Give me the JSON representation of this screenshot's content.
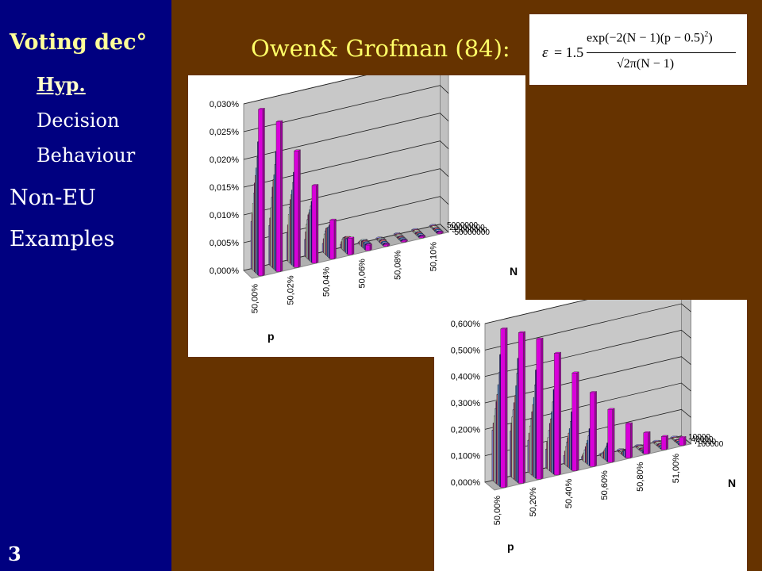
{
  "sidebar": {
    "title": "Voting dec°",
    "sub_items": [
      "Hyp.",
      "Decision",
      "Behaviour"
    ],
    "main_items": [
      "Non-EU",
      "Examples"
    ],
    "slide_number": "3"
  },
  "heading": "Owen& Grofman (84):",
  "formula": {
    "lhs": "ε",
    "eq": "= 1.5",
    "numerator": "exp(−2(N − 1)(p − 0.5)",
    "exponent": "2",
    "numerator_close": ")",
    "denominator": "√2π(N − 1)"
  },
  "colors": {
    "background": "#663300",
    "sidebar": "#000080",
    "heading": "#ffff66",
    "series": [
      "#9999ff",
      "#993366",
      "#ffffcc",
      "#ccffff",
      "#660066",
      "#ff8080",
      "#0066cc",
      "#ccccff",
      "#000080",
      "#ff00ff"
    ]
  },
  "chart_data": [
    {
      "type": "3d-bar",
      "y_ticks": [
        "0,000%",
        "0,005%",
        "0,010%",
        "0,015%",
        "0,020%",
        "0,025%",
        "0,030%"
      ],
      "ylim": [
        0,
        0.03
      ],
      "x_ticks": [
        "50,00%",
        "50,02%",
        "50,04%",
        "50,06%",
        "50,08%",
        "50,10%"
      ],
      "xlabel": "p",
      "depth_ticks": [
        "5000000",
        "20000000",
        "35000000",
        "50000000"
      ],
      "depth_label": "N",
      "series_heights": [
        [
          0.0085,
          0.007,
          0.005,
          0.003,
          0.0015,
          0.0006,
          0.0002,
          0.0001,
          0,
          0,
          0
        ],
        [
          0.01,
          0.0085,
          0.0065,
          0.0045,
          0.0025,
          0.0012,
          0.0005,
          0.0002,
          0,
          0,
          0
        ],
        [
          0.012,
          0.0105,
          0.0085,
          0.006,
          0.0035,
          0.0018,
          0.0008,
          0.0003,
          0.0001,
          0,
          0
        ],
        [
          0.014,
          0.0125,
          0.01,
          0.007,
          0.0042,
          0.0022,
          0.001,
          0.0004,
          0.0001,
          0,
          0
        ],
        [
          0.016,
          0.0145,
          0.0115,
          0.008,
          0.0048,
          0.0024,
          0.001,
          0.0004,
          0.0001,
          0,
          0
        ],
        [
          0.0175,
          0.016,
          0.0125,
          0.0085,
          0.005,
          0.0025,
          0.001,
          0.0004,
          0.0001,
          0,
          0
        ],
        [
          0.019,
          0.017,
          0.0135,
          0.0092,
          0.0052,
          0.0025,
          0.001,
          0.0003,
          0.0001,
          0,
          0
        ],
        [
          0.021,
          0.019,
          0.015,
          0.01,
          0.0055,
          0.0026,
          0.001,
          0.0003,
          0.0001,
          0,
          0
        ],
        [
          0.024,
          0.0215,
          0.017,
          0.011,
          0.006,
          0.0028,
          0.001,
          0.0003,
          0.0001,
          0,
          0
        ],
        [
          0.03,
          0.027,
          0.021,
          0.014,
          0.007,
          0.003,
          0.001,
          0.0003,
          0.0001,
          0,
          0
        ]
      ]
    },
    {
      "type": "3d-bar",
      "y_ticks": [
        "0,000%",
        "0,100%",
        "0,200%",
        "0,300%",
        "0,400%",
        "0,500%",
        "0,600%"
      ],
      "ylim": [
        0,
        0.6
      ],
      "x_ticks": [
        "50,00%",
        "50,20%",
        "50,40%",
        "50,60%",
        "50,80%",
        "51,00%"
      ],
      "xlabel": "p",
      "depth_ticks": [
        "10000",
        "40000",
        "70000",
        "100000"
      ],
      "depth_label": "N",
      "series_heights": [
        [
          0.19,
          0.17,
          0.12,
          0.07,
          0.03,
          0.01,
          0.003,
          0.001,
          0,
          0,
          0
        ],
        [
          0.22,
          0.2,
          0.15,
          0.1,
          0.05,
          0.02,
          0.006,
          0.002,
          0,
          0,
          0
        ],
        [
          0.25,
          0.23,
          0.18,
          0.12,
          0.07,
          0.03,
          0.01,
          0.003,
          0.001,
          0,
          0
        ],
        [
          0.28,
          0.26,
          0.21,
          0.15,
          0.09,
          0.045,
          0.018,
          0.006,
          0.002,
          0,
          0
        ],
        [
          0.31,
          0.29,
          0.24,
          0.18,
          0.11,
          0.06,
          0.025,
          0.008,
          0.002,
          0,
          0
        ],
        [
          0.34,
          0.32,
          0.27,
          0.2,
          0.13,
          0.075,
          0.035,
          0.012,
          0.003,
          0,
          0
        ],
        [
          0.38,
          0.36,
          0.3,
          0.23,
          0.15,
          0.09,
          0.045,
          0.017,
          0.005,
          0.001,
          0
        ],
        [
          0.43,
          0.41,
          0.35,
          0.27,
          0.18,
          0.11,
          0.055,
          0.022,
          0.007,
          0.002,
          0
        ],
        [
          0.5,
          0.47,
          0.41,
          0.32,
          0.22,
          0.14,
          0.07,
          0.03,
          0.01,
          0.003,
          0.001
        ],
        [
          0.6,
          0.57,
          0.53,
          0.46,
          0.37,
          0.28,
          0.2,
          0.13,
          0.08,
          0.05,
          0.03
        ]
      ]
    }
  ]
}
